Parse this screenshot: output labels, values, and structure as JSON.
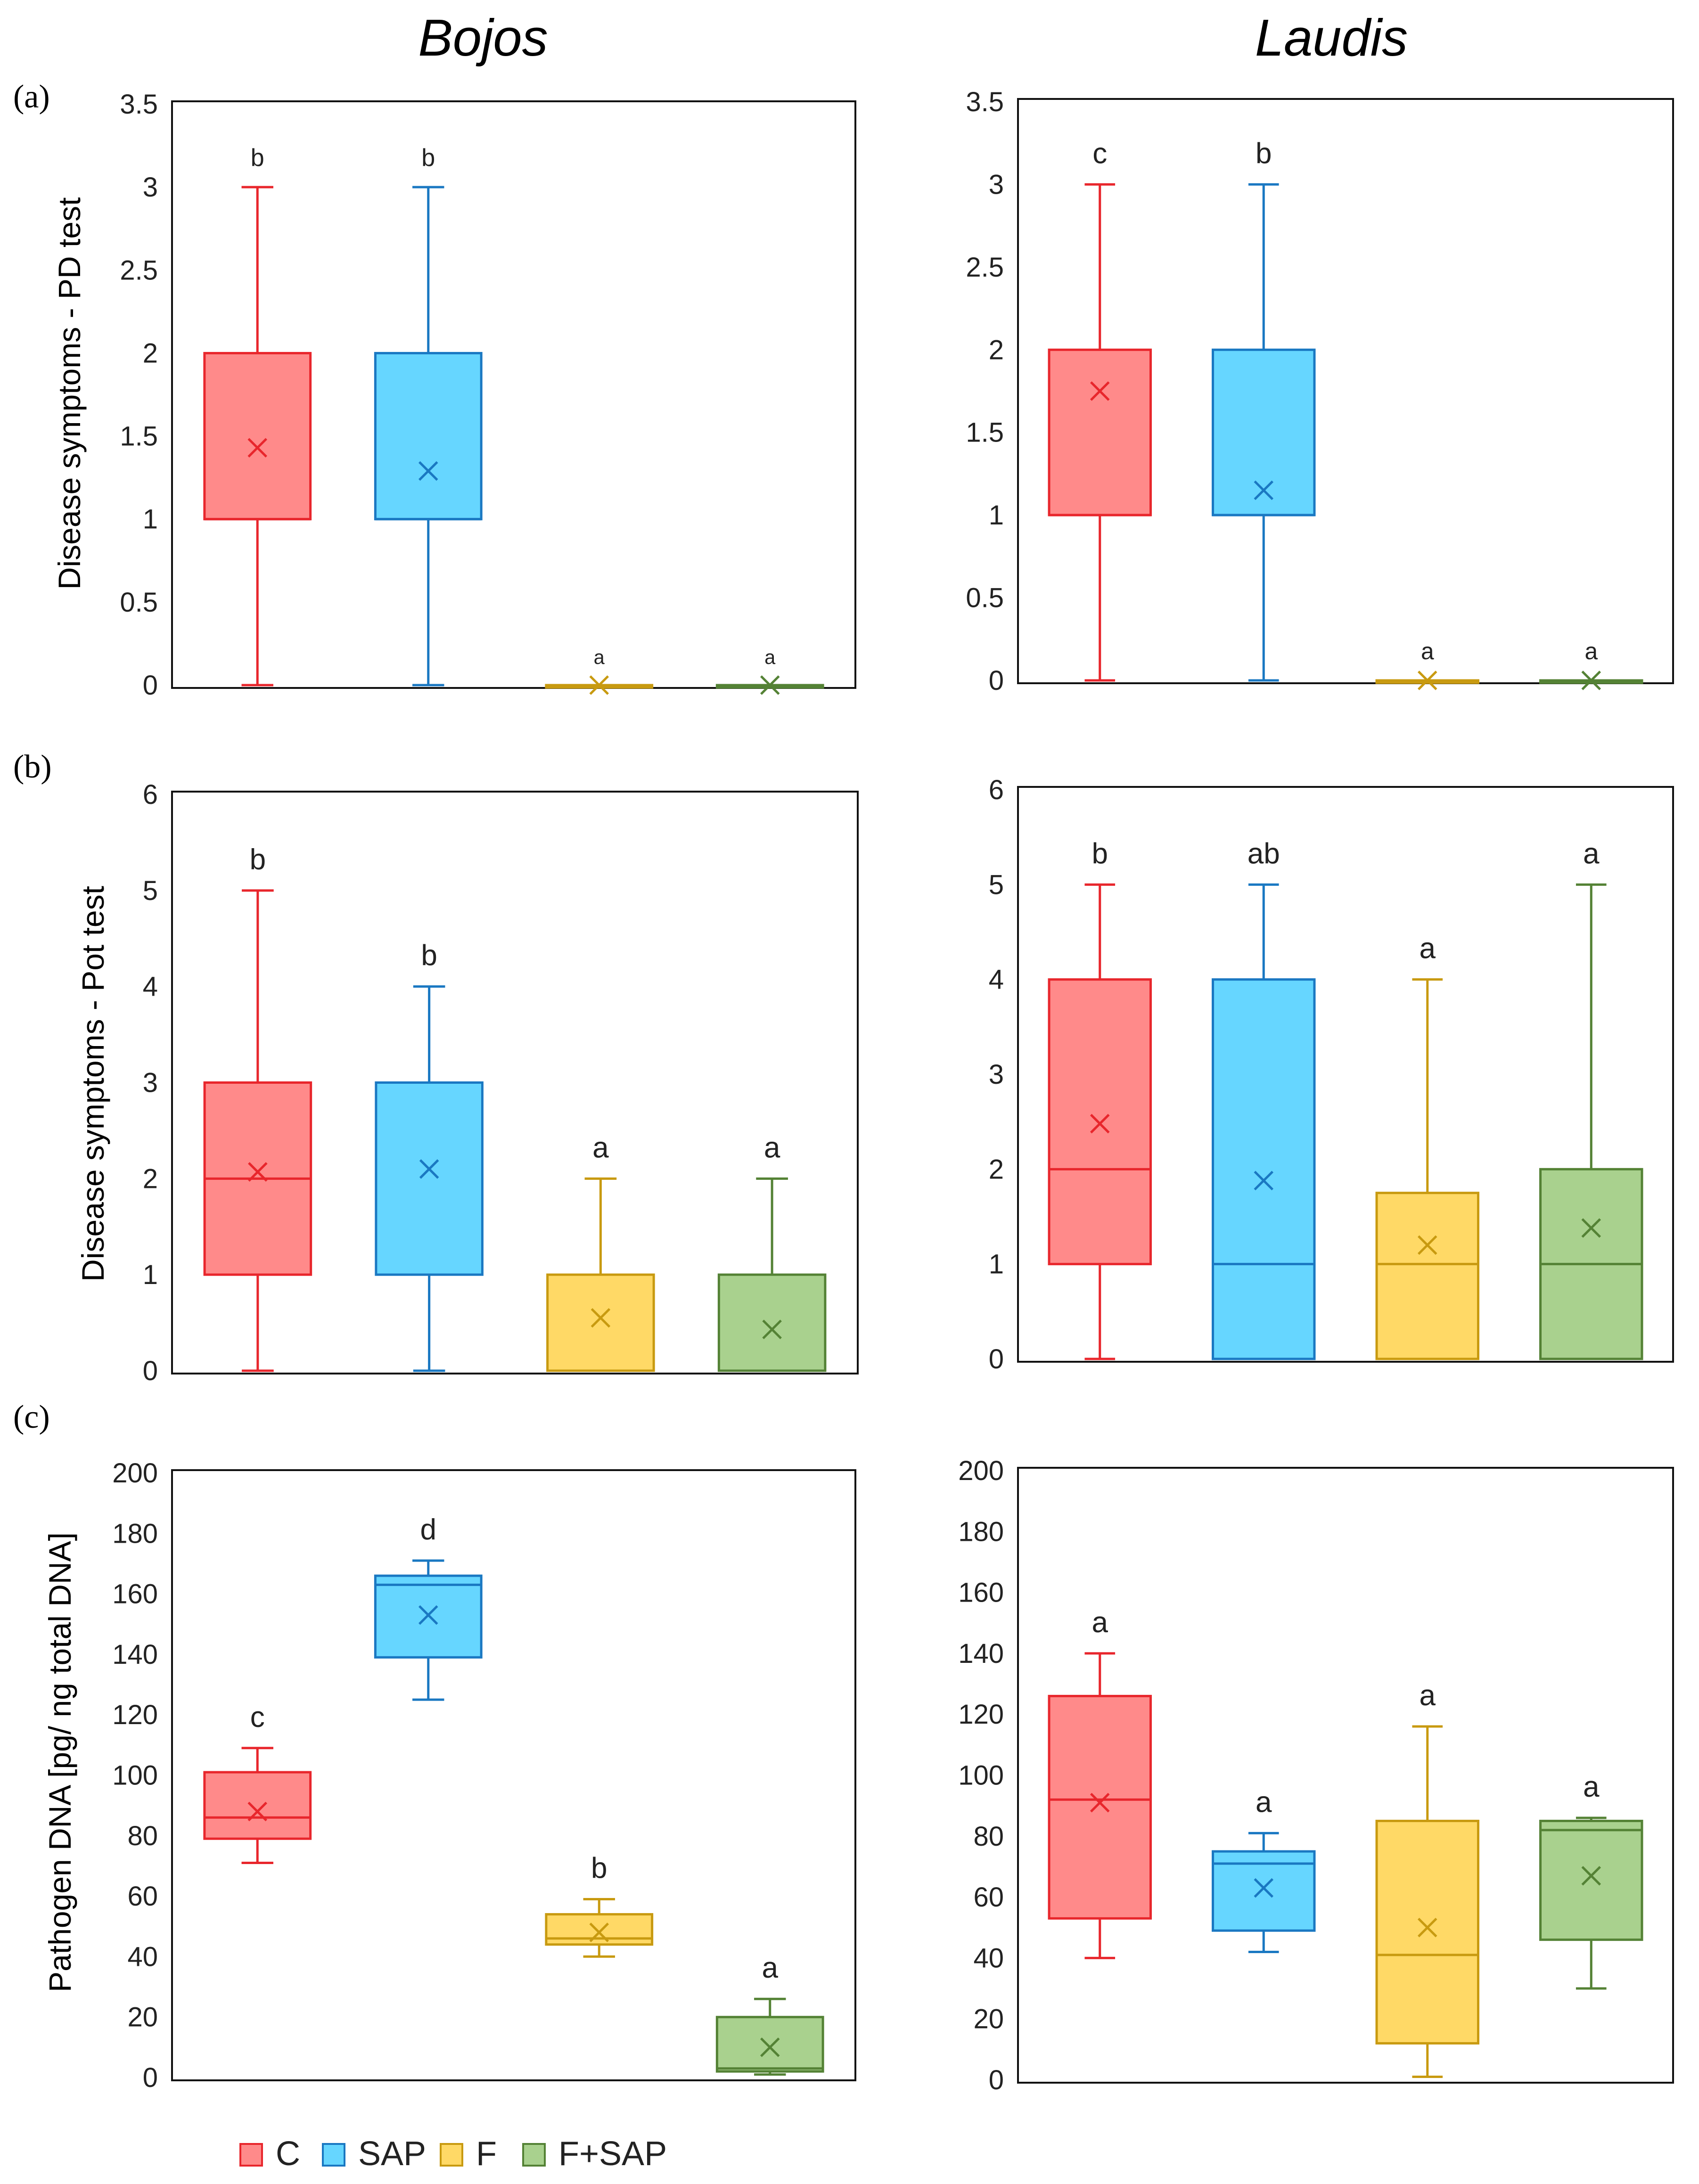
{
  "column_titles": [
    "Bojos",
    "Laudis"
  ],
  "row_labels": [
    "(a)",
    "(b)",
    "(c)"
  ],
  "y_axis_labels": [
    "Disease symptoms - PD test",
    "Disease symptoms - Pot test",
    "Pathogen DNA [pg/ ng total DNA]"
  ],
  "legend": [
    {
      "label": "C",
      "fill": "#ff8a8a",
      "stroke": "#e8262c"
    },
    {
      "label": "SAP",
      "fill": "#66d6ff",
      "stroke": "#1a78c2"
    },
    {
      "label": "F",
      "fill": "#ffd966",
      "stroke": "#c89a10"
    },
    {
      "label": "F+SAP",
      "fill": "#a9d18e",
      "stroke": "#548235"
    }
  ],
  "chart_data": [
    {
      "type": "box",
      "panel": "(a)",
      "cultivar": "Bojos",
      "ylabel": "Disease symptoms - PD test",
      "ylim": [
        0,
        3.5
      ],
      "yticks": [
        "0",
        "0.5",
        "1",
        "1.5",
        "2",
        "2.5",
        "3",
        "3.5"
      ],
      "categories": [
        "C",
        "SAP",
        "F",
        "F+SAP"
      ],
      "boxes": [
        {
          "min": 0,
          "q1": 1,
          "median": 1,
          "q3": 2,
          "max": 3,
          "mean": 1.43,
          "letter": "b"
        },
        {
          "min": 0,
          "q1": 1,
          "median": 1,
          "q3": 2,
          "max": 3,
          "mean": 1.29,
          "letter": "b"
        },
        {
          "min": 0,
          "q1": 0,
          "median": 0,
          "q3": 0,
          "max": 0,
          "mean": 0,
          "letter": "a"
        },
        {
          "min": 0,
          "q1": 0,
          "median": 0,
          "q3": 0,
          "max": 0,
          "mean": 0,
          "letter": "a"
        }
      ]
    },
    {
      "type": "box",
      "panel": "(a)",
      "cultivar": "Laudis",
      "ylim": [
        0,
        3.5
      ],
      "yticks": [
        "0",
        "0.5",
        "1",
        "1.5",
        "2",
        "2.5",
        "3",
        "3.5"
      ],
      "categories": [
        "C",
        "SAP",
        "F",
        "F+SAP"
      ],
      "boxes": [
        {
          "min": 0,
          "q1": 1,
          "median": 1,
          "q3": 2,
          "max": 3,
          "mean": 1.75,
          "letter": "c"
        },
        {
          "min": 0,
          "q1": 1,
          "median": 1,
          "q3": 2,
          "max": 3,
          "mean": 1.15,
          "letter": "b"
        },
        {
          "min": 0,
          "q1": 0,
          "median": 0,
          "q3": 0,
          "max": 0,
          "mean": 0,
          "letter": "a"
        },
        {
          "min": 0,
          "q1": 0,
          "median": 0,
          "q3": 0,
          "max": 0,
          "mean": 0,
          "letter": "a"
        }
      ]
    },
    {
      "type": "box",
      "panel": "(b)",
      "cultivar": "Bojos",
      "ylabel": "Disease symptoms - Pot test",
      "ylim": [
        0,
        6
      ],
      "yticks": [
        "0",
        "1",
        "2",
        "3",
        "4",
        "5",
        "6"
      ],
      "categories": [
        "C",
        "SAP",
        "F",
        "F+SAP"
      ],
      "boxes": [
        {
          "min": 0,
          "q1": 1,
          "median": 2,
          "q3": 3,
          "max": 5,
          "mean": 2.07,
          "letter": "b"
        },
        {
          "min": 0,
          "q1": 1,
          "median": 3,
          "q3": 3,
          "max": 4,
          "mean": 2.1,
          "letter": "b"
        },
        {
          "min": 0,
          "q1": 0,
          "median": 0,
          "q3": 1,
          "max": 2,
          "mean": 0.55,
          "letter": "a"
        },
        {
          "min": 0,
          "q1": 0,
          "median": 0,
          "q3": 1,
          "max": 2,
          "mean": 0.43,
          "letter": "a"
        }
      ]
    },
    {
      "type": "box",
      "panel": "(b)",
      "cultivar": "Laudis",
      "ylim": [
        0,
        6
      ],
      "yticks": [
        "0",
        "1",
        "2",
        "3",
        "4",
        "5",
        "6"
      ],
      "categories": [
        "C",
        "SAP",
        "F",
        "F+SAP"
      ],
      "boxes": [
        {
          "min": 0,
          "q1": 1,
          "median": 2,
          "q3": 4,
          "max": 5,
          "mean": 2.48,
          "letter": "b"
        },
        {
          "min": 0,
          "q1": 0,
          "median": 1,
          "q3": 4,
          "max": 5,
          "mean": 1.88,
          "letter": "ab"
        },
        {
          "min": 0,
          "q1": 0,
          "median": 1,
          "q3": 1.75,
          "max": 4,
          "mean": 1.2,
          "letter": "a"
        },
        {
          "min": 0,
          "q1": 0,
          "median": 1,
          "q3": 2,
          "max": 5,
          "mean": 1.38,
          "letter": "a"
        }
      ]
    },
    {
      "type": "box",
      "panel": "(c)",
      "cultivar": "Bojos",
      "ylabel": "Pathogen DNA [pg/ ng total DNA]",
      "ylim": [
        0,
        200
      ],
      "yticks": [
        "0",
        "20",
        "40",
        "60",
        "80",
        "100",
        "120",
        "140",
        "160",
        "180",
        "200"
      ],
      "categories": [
        "C",
        "SAP",
        "F",
        "F+SAP"
      ],
      "boxes": [
        {
          "min": 71,
          "q1": 79,
          "median": 86,
          "q3": 101,
          "max": 109,
          "mean": 88,
          "letter": "c"
        },
        {
          "min": 125,
          "q1": 139,
          "median": 163,
          "q3": 166,
          "max": 171,
          "mean": 153,
          "letter": "d"
        },
        {
          "min": 40,
          "q1": 44,
          "median": 46,
          "q3": 54,
          "max": 59,
          "mean": 48,
          "letter": "b"
        },
        {
          "min": 1,
          "q1": 2,
          "median": 3,
          "q3": 20,
          "max": 26,
          "mean": 10,
          "letter": "a"
        }
      ]
    },
    {
      "type": "box",
      "panel": "(c)",
      "cultivar": "Laudis",
      "ylim": [
        0,
        200
      ],
      "yticks": [
        "0",
        "20",
        "40",
        "60",
        "80",
        "100",
        "120",
        "140",
        "160",
        "180",
        "200"
      ],
      "categories": [
        "C",
        "SAP",
        "F",
        "F+SAP"
      ],
      "boxes": [
        {
          "min": 40,
          "q1": 53,
          "median": 92,
          "q3": 126,
          "max": 140,
          "mean": 91,
          "letter": "a"
        },
        {
          "min": 42,
          "q1": 49,
          "median": 71,
          "q3": 75,
          "max": 81,
          "mean": 63,
          "letter": "a"
        },
        {
          "min": 1,
          "q1": 12,
          "median": 41,
          "q3": 85,
          "max": 116,
          "mean": 50,
          "letter": "a"
        },
        {
          "min": 30,
          "q1": 46,
          "median": 82,
          "q3": 85,
          "max": 86,
          "mean": 67,
          "letter": "a"
        }
      ]
    }
  ]
}
